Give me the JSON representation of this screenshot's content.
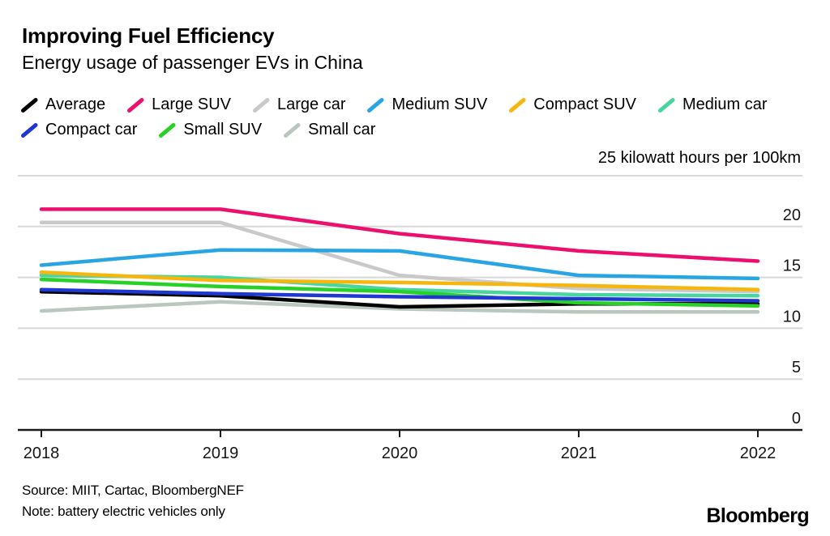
{
  "header": {
    "title": "Improving Fuel Efficiency",
    "subtitle": "Energy usage of passenger EVs in China"
  },
  "legend": {
    "rows": [
      [
        "Average",
        "Large SUV",
        "Large car",
        "Medium SUV",
        "Compact SUV",
        "Medium car"
      ],
      [
        "Compact car",
        "Small SUV",
        "Small car"
      ]
    ]
  },
  "axis": {
    "unit_label": "25 kilowatt hours per 100km"
  },
  "chart_data": {
    "type": "line",
    "x": [
      2018,
      2019,
      2020,
      2021,
      2022
    ],
    "series": [
      {
        "name": "Average",
        "color": "#000000",
        "values": [
          13.6,
          13.2,
          12.1,
          12.4,
          12.4
        ]
      },
      {
        "name": "Large SUV",
        "color": "#ec0f6e",
        "values": [
          21.7,
          21.7,
          19.3,
          17.6,
          16.6
        ]
      },
      {
        "name": "Large car",
        "color": "#c9c9c9",
        "values": [
          20.4,
          20.4,
          15.2,
          13.9,
          13.6
        ]
      },
      {
        "name": "Medium SUV",
        "color": "#29a5e4",
        "values": [
          16.2,
          17.7,
          17.6,
          15.2,
          14.9
        ]
      },
      {
        "name": "Compact SUV",
        "color": "#f7b60d",
        "values": [
          15.5,
          14.7,
          14.5,
          14.2,
          13.8
        ]
      },
      {
        "name": "Medium car",
        "color": "#47d5a0",
        "values": [
          15.2,
          15.0,
          13.8,
          13.3,
          13.2
        ]
      },
      {
        "name": "Compact car",
        "color": "#2038d2",
        "values": [
          13.8,
          13.4,
          13.1,
          12.9,
          12.7
        ]
      },
      {
        "name": "Small SUV",
        "color": "#27d127",
        "values": [
          14.8,
          14.1,
          13.6,
          12.5,
          12.2
        ]
      },
      {
        "name": "Small car",
        "color": "#b9c7bf",
        "values": [
          11.7,
          12.6,
          11.9,
          11.6,
          11.6
        ]
      }
    ],
    "title": "Improving Fuel Efficiency",
    "subtitle": "Energy usage of passenger EVs in China",
    "xlabel": "",
    "ylabel": "25 kilowatt hours per 100km",
    "ylim": [
      0,
      25
    ],
    "yticks": [
      0,
      5,
      10,
      15,
      20,
      25
    ],
    "ytick_labels": [
      "0",
      "5",
      "10",
      "15",
      "20",
      "25 kilowatt hours per 100km"
    ],
    "grid": "horizontal",
    "legend_position": "top",
    "draw_order": [
      8,
      2,
      0,
      5,
      4,
      7,
      6,
      3,
      1
    ],
    "grid_color": "#d8d8d8",
    "axis_color": "#1a1a1a"
  },
  "footer": {
    "source": "Source: MIIT, Cartac, BloombergNEF",
    "note": "Note: battery electric vehicles only",
    "logo": "Bloomberg"
  }
}
